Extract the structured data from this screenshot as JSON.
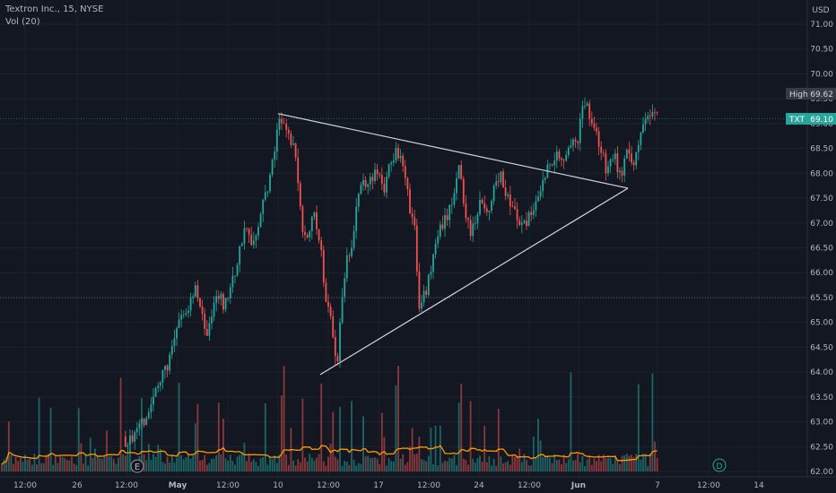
{
  "legend": {
    "symbol_line": "Textron Inc., 15, NYSE",
    "volume_line": "Vol (20)"
  },
  "currency_label": "USD",
  "price_axis": {
    "ticks": [
      "71.00",
      "70.50",
      "70.00",
      "69.50",
      "69.00",
      "68.50",
      "68.00",
      "67.50",
      "67.00",
      "66.50",
      "66.00",
      "65.50",
      "65.00",
      "64.50",
      "64.00",
      "63.50",
      "63.00",
      "62.50",
      "62.00"
    ]
  },
  "time_axis": {
    "ticks": [
      "12:00",
      "26",
      "12:00",
      "May",
      "12:00",
      "10",
      "12:00",
      "17",
      "12:00",
      "24",
      "12:00",
      "Jun",
      "7",
      "12:00",
      "14"
    ]
  },
  "labels": {
    "high_tag": "High",
    "high_value": "69.62",
    "ticker_tag": "TXT",
    "last_value": "69.10"
  },
  "markers": {
    "earnings": "E",
    "dividend": "D"
  },
  "colors": {
    "background": "#131722",
    "up": "#26a69a",
    "down": "#ef5350",
    "volume_ma": "#ff9800",
    "drawing": "#d1d4dc",
    "last_price_badge": "#26a69a"
  },
  "chart_data": {
    "type": "candlestick",
    "symbol": "TXT",
    "interval": "15",
    "exchange": "NYSE",
    "y_range": [
      61.9,
      71.4
    ],
    "high": 69.62,
    "last": 69.1,
    "price_path": [
      [
        0,
        62.5
      ],
      [
        140,
        62.6
      ],
      [
        150,
        62.7
      ],
      [
        165,
        63.2
      ],
      [
        178,
        63.8
      ],
      [
        190,
        64.3
      ],
      [
        200,
        65.0
      ],
      [
        210,
        65.3
      ],
      [
        218,
        65.8
      ],
      [
        225,
        65.2
      ],
      [
        232,
        64.7
      ],
      [
        240,
        65.7
      ],
      [
        250,
        65.3
      ],
      [
        262,
        66.0
      ],
      [
        272,
        66.9
      ],
      [
        282,
        66.6
      ],
      [
        292,
        67.3
      ],
      [
        302,
        68.0
      ],
      [
        312,
        69.1
      ],
      [
        320,
        68.8
      ],
      [
        330,
        68.4
      ],
      [
        336,
        67.0
      ],
      [
        342,
        66.8
      ],
      [
        350,
        67.2
      ],
      [
        358,
        66.4
      ],
      [
        364,
        65.4
      ],
      [
        370,
        64.9
      ],
      [
        375,
        64.0
      ],
      [
        380,
        65.2
      ],
      [
        386,
        66.2
      ],
      [
        393,
        66.7
      ],
      [
        400,
        67.6
      ],
      [
        410,
        67.9
      ],
      [
        420,
        68.0
      ],
      [
        430,
        67.7
      ],
      [
        436,
        68.3
      ],
      [
        443,
        68.5
      ],
      [
        450,
        68.0
      ],
      [
        456,
        67.4
      ],
      [
        462,
        66.9
      ],
      [
        468,
        65.2
      ],
      [
        474,
        65.6
      ],
      [
        480,
        66.0
      ],
      [
        487,
        66.7
      ],
      [
        495,
        67.0
      ],
      [
        503,
        67.3
      ],
      [
        511,
        68.2
      ],
      [
        518,
        67.3
      ],
      [
        524,
        66.8
      ],
      [
        530,
        67.0
      ],
      [
        537,
        67.5
      ],
      [
        545,
        67.3
      ],
      [
        552,
        67.7
      ],
      [
        558,
        68.0
      ],
      [
        566,
        67.5
      ],
      [
        574,
        67.2
      ],
      [
        582,
        66.9
      ],
      [
        590,
        67.1
      ],
      [
        598,
        67.5
      ],
      [
        604,
        67.8
      ],
      [
        612,
        68.2
      ],
      [
        620,
        68.4
      ],
      [
        628,
        68.3
      ],
      [
        636,
        68.7
      ],
      [
        644,
        68.5
      ],
      [
        650,
        69.5
      ],
      [
        656,
        69.3
      ],
      [
        662,
        68.9
      ],
      [
        670,
        68.5
      ],
      [
        676,
        68.0
      ],
      [
        684,
        68.4
      ],
      [
        692,
        67.9
      ],
      [
        698,
        68.4
      ],
      [
        706,
        68.1
      ],
      [
        712,
        68.7
      ],
      [
        720,
        69.1
      ],
      [
        727,
        69.2
      ],
      [
        734,
        69.1
      ]
    ],
    "trendlines": [
      {
        "name": "upper",
        "from": [
          310,
          69.2
        ],
        "to": [
          700,
          67.7
        ]
      },
      {
        "name": "lower",
        "from": [
          357,
          63.95
        ],
        "to": [
          700,
          67.7
        ]
      }
    ],
    "horizontal_lines": [
      69.1,
      65.5
    ],
    "volume": {
      "baseline_level": "low",
      "ma_period": 20
    }
  }
}
